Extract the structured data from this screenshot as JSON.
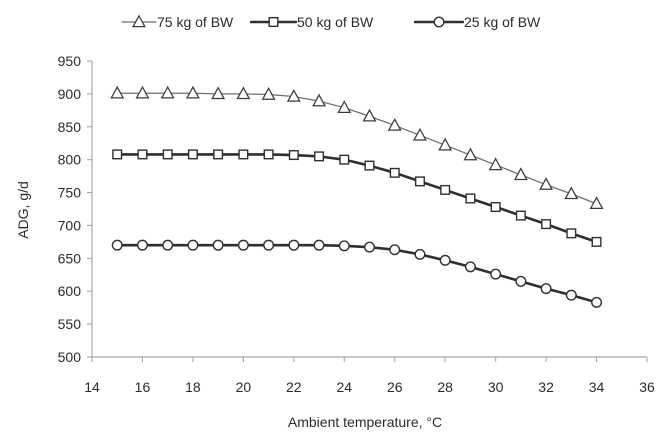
{
  "chart_data": {
    "type": "line",
    "title": "",
    "xlabel": "Ambient temperature, °C",
    "ylabel": "ADG, g/d",
    "xlim": [
      14,
      36
    ],
    "ylim": [
      500,
      950
    ],
    "x_ticks": [
      14,
      16,
      18,
      20,
      22,
      24,
      26,
      28,
      30,
      32,
      34,
      36
    ],
    "y_ticks": [
      500,
      550,
      600,
      650,
      700,
      750,
      800,
      850,
      900,
      950
    ],
    "x_tick_labels": [
      "14",
      "16",
      "18",
      "20",
      "22",
      "24",
      "26",
      "28",
      "30",
      "32",
      "34",
      "36"
    ],
    "y_tick_labels": [
      "500",
      "550",
      "600",
      "650",
      "700",
      "750",
      "800",
      "850",
      "900",
      "950"
    ],
    "legend_position": "top",
    "grid": false,
    "x": [
      15,
      16,
      17,
      18,
      19,
      20,
      21,
      22,
      23,
      24,
      25,
      26,
      27,
      28,
      29,
      30,
      31,
      32,
      33,
      34
    ],
    "series": [
      {
        "name": "75 kg of BW",
        "marker": "triangle",
        "line_color": "#6e6e6e",
        "marker_color": "#3a3a3a",
        "line_width_hint": "thin",
        "values": [
          901,
          901,
          901,
          901,
          900,
          900,
          899,
          896,
          889,
          879,
          866,
          852,
          837,
          822,
          807,
          792,
          777,
          762,
          748,
          733
        ]
      },
      {
        "name": "50 kg of BW",
        "marker": "square",
        "line_color": "#2f2f2f",
        "marker_color": "#2f2f2f",
        "line_width_hint": "thick",
        "values": [
          808,
          808,
          808,
          808,
          808,
          808,
          808,
          807,
          805,
          800,
          791,
          780,
          767,
          754,
          741,
          728,
          715,
          702,
          688,
          675
        ]
      },
      {
        "name": "25 kg of BW",
        "marker": "circle",
        "line_color": "#2f2f2f",
        "marker_color": "#2f2f2f",
        "line_width_hint": "thick",
        "values": [
          670,
          670,
          670,
          670,
          670,
          670,
          670,
          670,
          670,
          669,
          667,
          663,
          656,
          647,
          637,
          626,
          615,
          604,
          594,
          583
        ]
      }
    ]
  }
}
